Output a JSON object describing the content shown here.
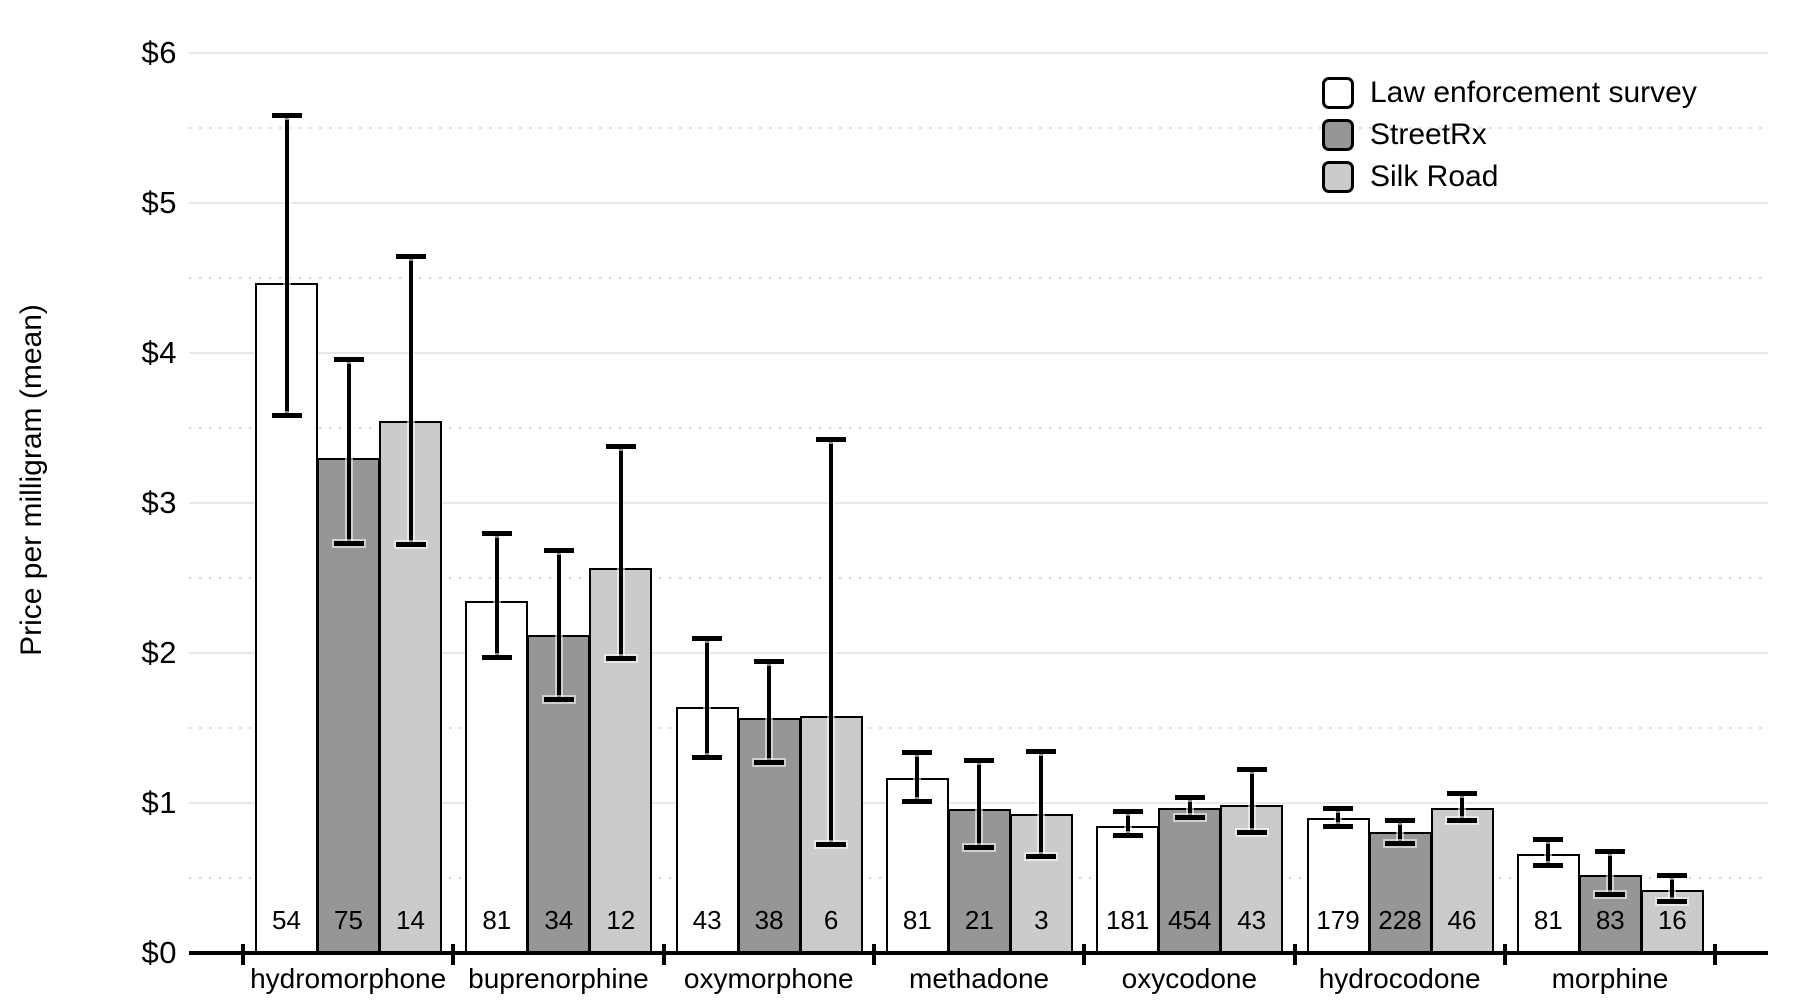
{
  "chart_data": {
    "type": "bar",
    "title": "",
    "ylabel": "Price per milligram (mean)",
    "xlabel": "",
    "ylim": [
      0,
      6
    ],
    "yticks": [
      {
        "value": 0,
        "label": "$0"
      },
      {
        "value": 1,
        "label": "$1"
      },
      {
        "value": 2,
        "label": "$2"
      },
      {
        "value": 3,
        "label": "$3"
      },
      {
        "value": 4,
        "label": "$4"
      },
      {
        "value": 5,
        "label": "$5"
      },
      {
        "value": 6,
        "label": "$6"
      }
    ],
    "grid": "horizontal major solid at $1 steps, minor dotted at $0.50 steps",
    "legend_position": "top-right",
    "categories": [
      "hydromorphone",
      "buprenorphine",
      "oxymorphone",
      "methadone",
      "oxycodone",
      "hydrocodone",
      "morphine"
    ],
    "series": [
      {
        "name": "Law enforcement survey",
        "color": "#ffffff",
        "values": [
          4.47,
          2.35,
          1.64,
          1.17,
          0.85,
          0.9,
          0.66
        ],
        "ci_low": [
          3.58,
          1.97,
          1.3,
          1.01,
          0.78,
          0.84,
          0.58
        ],
        "ci_high": [
          5.59,
          2.8,
          2.1,
          1.34,
          0.95,
          0.97,
          0.76
        ],
        "n": [
          54,
          81,
          43,
          81,
          181,
          179,
          81
        ]
      },
      {
        "name": "StreetRx",
        "color": "#969696",
        "values": [
          3.3,
          2.12,
          1.57,
          0.96,
          0.97,
          0.81,
          0.52
        ],
        "ci_low": [
          2.73,
          1.69,
          1.27,
          0.7,
          0.9,
          0.73,
          0.39
        ],
        "ci_high": [
          3.96,
          2.69,
          1.95,
          1.29,
          1.04,
          0.89,
          0.68
        ],
        "n": [
          75,
          34,
          38,
          21,
          454,
          228,
          83
        ]
      },
      {
        "name": "Silk Road",
        "color": "#cbcbcb",
        "values": [
          3.55,
          2.57,
          1.58,
          0.93,
          0.99,
          0.97,
          0.42
        ],
        "ci_low": [
          2.72,
          1.96,
          0.72,
          0.64,
          0.8,
          0.88,
          0.34
        ],
        "ci_high": [
          4.65,
          3.38,
          3.43,
          1.35,
          1.23,
          1.07,
          0.52
        ],
        "n": [
          14,
          12,
          6,
          3,
          43,
          46,
          16
        ]
      }
    ]
  }
}
